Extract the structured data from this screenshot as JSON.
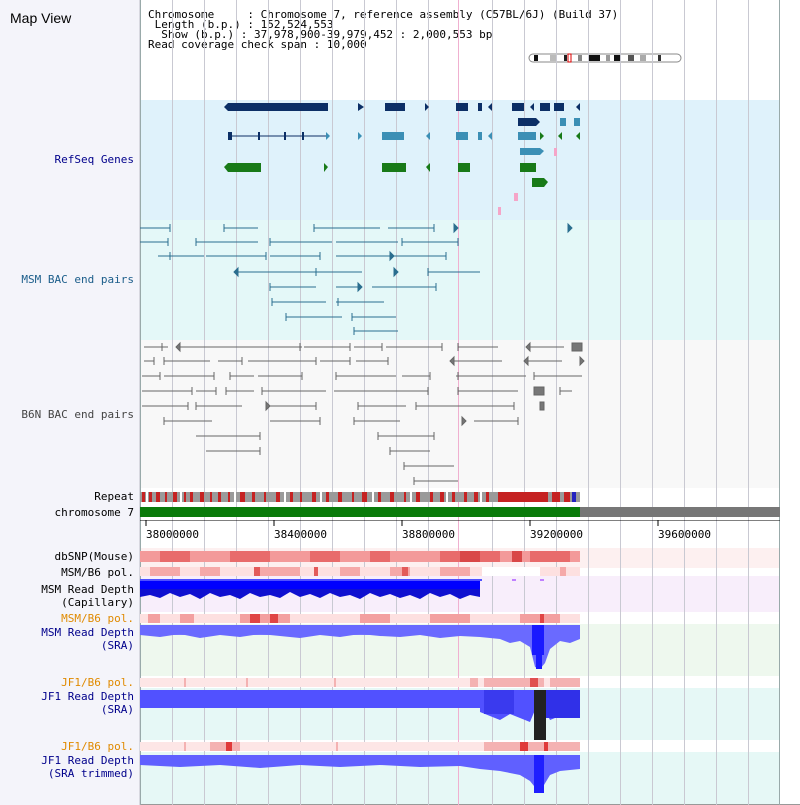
{
  "title": "Map View",
  "info": {
    "chromosome_label": "Chromosome",
    "chromosome_value": "Chromosome 7, reference assembly (C57BL/6J) (Build 37)",
    "length_label": "Length (b.p.)",
    "length_value": "152,524,553",
    "show_label": "Show (b.p.)",
    "show_value": "37,978,900-39,979,452 : 2,000,553 bp",
    "coverage_label": "Read coverage check span",
    "coverage_value": "10,000"
  },
  "tracks": {
    "refseq": "RefSeq Genes",
    "msm_bac": "MSM BAC end pairs",
    "b6n_bac": "B6N BAC end pairs",
    "repeat": "Repeat",
    "chromosome": "chromosome 7",
    "dbsnp": "dbSNP(Mouse)",
    "msm_b6_pol_1": "MSM/B6 pol.",
    "msm_depth_cap_1": "MSM Read Depth",
    "msm_depth_cap_2": "(Capillary)",
    "msm_b6_pol_2": "MSM/B6 pol.",
    "msm_depth_sra_1": "MSM Read Depth",
    "msm_depth_sra_2": "(SRA)",
    "jf1_b6_pol_1": "JF1/B6 pol.",
    "jf1_depth_sra_1": "JF1 Read Depth",
    "jf1_depth_sra_2": "(SRA)",
    "jf1_b6_pol_2": "JF1/B6 pol.",
    "jf1_depth_trim_1": "JF1 Read Depth",
    "jf1_depth_trim_2": "(SRA trimmed)"
  },
  "axis": {
    "ticks": [
      "38000000",
      "38400000",
      "38800000",
      "39200000",
      "39600000"
    ]
  },
  "colors": {
    "refseq_bg": "#dff2fb",
    "msm_bac_bg": "#e4f8f8",
    "b6n_bac_bg": "#f7f7f7",
    "gene_navy": "#0c2f66",
    "gene_teal": "#3b8fb5",
    "gene_green": "#187a18",
    "msm_link": "#2a6e8f",
    "b6n_link": "#666666",
    "chrom_green": "#0a7a0a",
    "chrom_grey": "#777777",
    "blue_label": "#00008b",
    "orange_label": "#e08a00"
  }
}
